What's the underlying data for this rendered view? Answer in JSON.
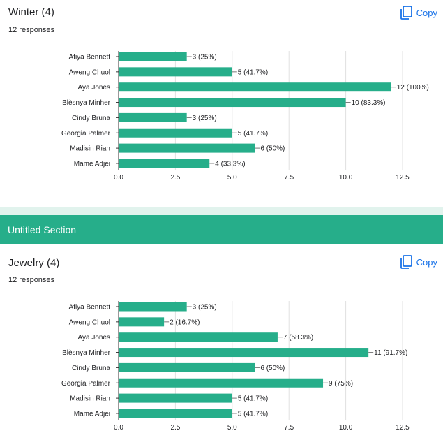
{
  "questions": [
    {
      "title": "Winter (4)",
      "responses": "12 responses",
      "copy_label": "Copy",
      "chart_data": {
        "type": "bar",
        "orientation": "horizontal",
        "categories": [
          "Afiya Bennett",
          "Aweng Chuol",
          "Aya Jones",
          "Blèsnya Minher",
          "Cindy Bruna",
          "Georgia Palmer",
          "Madisin Rian",
          "Mamé Adjei"
        ],
        "values": [
          3,
          5,
          12,
          10,
          3,
          5,
          6,
          4
        ],
        "value_labels": [
          "3 (25%)",
          "5 (41.7%)",
          "12 (100%)",
          "10 (83.3%)",
          "3 (25%)",
          "5 (41.7%)",
          "6 (50%)",
          "4 (33.3%)"
        ],
        "xlim": [
          0,
          12.5
        ],
        "xticks": [
          "0.0",
          "2.5",
          "5.0",
          "7.5",
          "10.0",
          "12.5"
        ],
        "bar_color": "#26ae8a",
        "grid": true
      }
    },
    {
      "title": "Jewelry (4)",
      "responses": "12 responses",
      "copy_label": "Copy",
      "chart_data": {
        "type": "bar",
        "orientation": "horizontal",
        "categories": [
          "Afiya Bennett",
          "Aweng Chuol",
          "Aya Jones",
          "Blèsnya Minher",
          "Cindy Bruna",
          "Georgia Palmer",
          "Madisin Rian",
          "Mamé Adjei"
        ],
        "values": [
          3,
          2,
          7,
          11,
          6,
          9,
          5,
          5
        ],
        "value_labels": [
          "3 (25%)",
          "2 (16.7%)",
          "7 (58.3%)",
          "11 (91.7%)",
          "6 (50%)",
          "9 (75%)",
          "5 (41.7%)",
          "5 (41.7%)"
        ],
        "xlim": [
          0,
          12.5
        ],
        "xticks": [
          "0.0",
          "2.5",
          "5.0",
          "7.5",
          "10.0",
          "12.5"
        ],
        "bar_color": "#26ae8a",
        "grid": true
      }
    }
  ],
  "section": {
    "title": "Untitled Section",
    "color": "#26ae8a"
  },
  "colors": {
    "accent_blue": "#1a73e8",
    "section_strip": "#e1f3ed"
  }
}
